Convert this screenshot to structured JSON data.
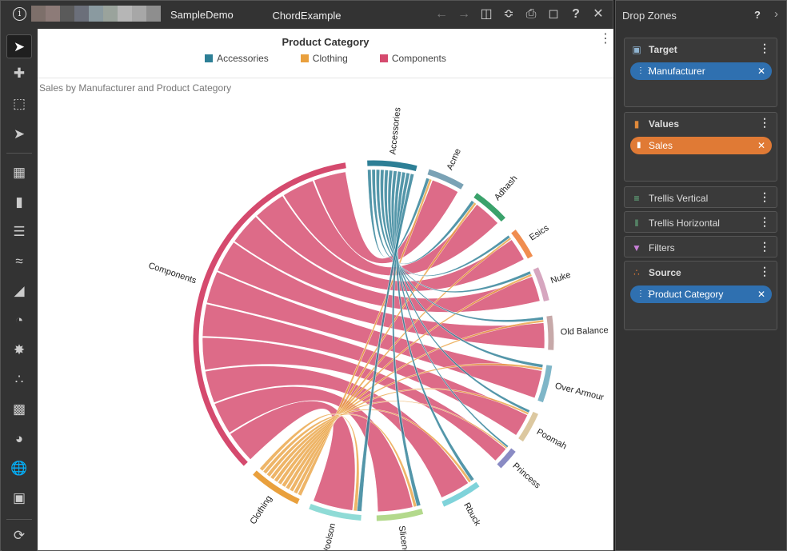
{
  "window": {
    "app_name": "SampleDemo",
    "doc_name": "ChordExample",
    "toolbar_icons": [
      "back-icon",
      "forward-icon",
      "save-icon",
      "share-icon",
      "print-icon",
      "connect-icon",
      "help-icon",
      "close-icon"
    ]
  },
  "chart": {
    "legend_title": "Product Category",
    "legend": [
      {
        "label": "Accessories",
        "color": "#2d7f96"
      },
      {
        "label": "Clothing",
        "color": "#e9a03d"
      },
      {
        "label": "Components",
        "color": "#d54a6e"
      }
    ],
    "subtitle": "Sales by Manufacturer and Product Category"
  },
  "chart_data": {
    "type": "chord",
    "title": "",
    "groups": [
      {
        "name": "Accessories",
        "color": "#2d7f96"
      },
      {
        "name": "Acme",
        "color": "#7aa2b5"
      },
      {
        "name": "Adhash",
        "color": "#3aa26b"
      },
      {
        "name": "Esics",
        "color": "#f08d4f"
      },
      {
        "name": "Nuke",
        "color": "#d6a6bf"
      },
      {
        "name": "Old Balance",
        "color": "#c7a9a9"
      },
      {
        "name": "Over Armour",
        "color": "#7fb6c8"
      },
      {
        "name": "Poomah",
        "color": "#dcc8a0"
      },
      {
        "name": "Princess",
        "color": "#8a8bc4"
      },
      {
        "name": "Rbuck",
        "color": "#7fd3da"
      },
      {
        "name": "Slicenger",
        "color": "#b3d98c"
      },
      {
        "name": "Woolson",
        "color": "#8fdbd6"
      },
      {
        "name": "Clothing",
        "color": "#e9a03d"
      },
      {
        "name": "Components",
        "color": "#d54a6e"
      }
    ]
  },
  "dropzones": {
    "title": "Drop Zones",
    "help": "?",
    "zones": [
      {
        "label": "Target",
        "chips": [
          {
            "label": "Manufacturer",
            "color": "blue"
          }
        ]
      },
      {
        "label": "Values",
        "chips": [
          {
            "label": "Sales",
            "color": "orange"
          }
        ]
      },
      {
        "label": "Trellis Vertical",
        "chips": []
      },
      {
        "label": "Trellis Horizontal",
        "chips": []
      },
      {
        "label": "Filters",
        "chips": []
      },
      {
        "label": "Source",
        "chips": [
          {
            "label": "Product Category",
            "color": "blue"
          }
        ]
      }
    ]
  }
}
